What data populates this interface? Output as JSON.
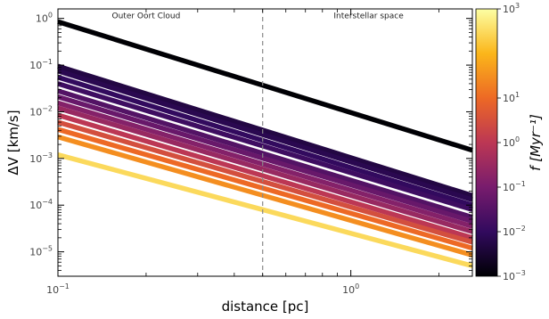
{
  "chart_data": {
    "type": "line",
    "xlabel": "distance [pc]",
    "ylabel": "ΔV [km/s]",
    "xscale": "log",
    "yscale": "log",
    "xlim": [
      0.1,
      2.6
    ],
    "ylim": [
      3e-06,
      1.6
    ],
    "grid": false,
    "x_ticks": [
      {
        "value": 0.1,
        "base": "10",
        "exp": "−1"
      },
      {
        "value": 1,
        "base": "10",
        "exp": "0"
      }
    ],
    "y_ticks": [
      {
        "value": 1e-05,
        "base": "10",
        "exp": "−5"
      },
      {
        "value": 0.0001,
        "base": "10",
        "exp": "−4"
      },
      {
        "value": 0.001,
        "base": "10",
        "exp": "−3"
      },
      {
        "value": 0.01,
        "base": "10",
        "exp": "−2"
      },
      {
        "value": 0.1,
        "base": "10",
        "exp": "−1"
      },
      {
        "value": 1,
        "base": "10",
        "exp": "0"
      }
    ],
    "divider": {
      "x": 0.5
    },
    "annotations": [
      {
        "text": "Outer Oort Cloud",
        "x": 0.2,
        "y": 1.0
      },
      {
        "text": "Interstellar space",
        "x": 1.15,
        "y": 1.0
      }
    ],
    "series": [
      {
        "y_at_0_1": 0.85,
        "y_at_2_6": 0.0015,
        "f": 0.001
      },
      {
        "y_at_0_1": 0.095,
        "y_at_2_6": 0.00016,
        "f": 0.005
      },
      {
        "y_at_0_1": 0.075,
        "y_at_2_6": 0.00013,
        "f": 0.007
      },
      {
        "y_at_0_1": 0.055,
        "y_at_2_6": 0.0001,
        "f": 0.01
      },
      {
        "y_at_0_1": 0.04,
        "y_at_2_6": 8e-05,
        "f": 0.015
      },
      {
        "y_at_0_1": 0.028,
        "y_at_2_6": 5.5e-05,
        "f": 0.03
      },
      {
        "y_at_0_1": 0.021,
        "y_at_2_6": 4.5e-05,
        "f": 0.06
      },
      {
        "y_at_0_1": 0.0155,
        "y_at_2_6": 3.5e-05,
        "f": 0.15
      },
      {
        "y_at_0_1": 0.012,
        "y_at_2_6": 2.7e-05,
        "f": 0.3
      },
      {
        "y_at_0_1": 0.0085,
        "y_at_2_6": 2e-05,
        "f": 1
      },
      {
        "y_at_0_1": 0.006,
        "y_at_2_6": 1.6e-05,
        "f": 3
      },
      {
        "y_at_0_1": 0.0042,
        "y_at_2_6": 1.2e-05,
        "f": 10
      },
      {
        "y_at_0_1": 0.0029,
        "y_at_2_6": 8.5e-06,
        "f": 30
      },
      {
        "y_at_0_1": 0.0012,
        "y_at_2_6": 5e-06,
        "f": 300
      }
    ],
    "colorbar": {
      "label": "f [Myr⁻¹]",
      "scale": "log",
      "range": [
        0.001,
        1000
      ],
      "colormap": "inferno",
      "ticks": [
        {
          "value": 0.001,
          "base": "10",
          "exp": "−3"
        },
        {
          "value": 0.01,
          "base": "10",
          "exp": "−2"
        },
        {
          "value": 0.1,
          "base": "10",
          "exp": "−1"
        },
        {
          "value": 1,
          "base": "10",
          "exp": "0"
        },
        {
          "value": 10,
          "base": "10",
          "exp": "1"
        },
        {
          "value": 1000,
          "base": "10",
          "exp": "3"
        }
      ],
      "stops": [
        "#000004",
        "#320a5e",
        "#781c6d",
        "#bc3754",
        "#ed6925",
        "#fbb61a",
        "#fcffa4"
      ]
    }
  }
}
